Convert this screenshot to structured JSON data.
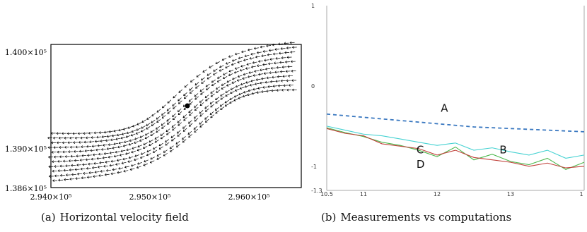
{
  "figures": [
    {
      "tag": "(a)",
      "caption": "Horizontal velocity field",
      "y_ticks": [
        "1.400×10⁵",
        "1.390×10⁵",
        "1.386×10⁵"
      ],
      "x_ticks": [
        "2.940×10⁵",
        "2.950×10⁵",
        "2.960×10⁵"
      ]
    },
    {
      "tag": "(b)",
      "caption": "Measurements vs computations",
      "y_ticks": [
        "1",
        "0",
        "-1",
        "-1.3"
      ],
      "x_ticks": [
        "10.5",
        "11",
        "12",
        "13",
        "1"
      ],
      "labels": [
        "A",
        "B",
        "C",
        "D"
      ]
    }
  ],
  "chart_data": [
    {
      "type": "scatter",
      "title": "",
      "xlabel": "",
      "ylabel": "",
      "xlim": [
        294000,
        296500
      ],
      "ylim": [
        138600,
        140100
      ],
      "grid": false,
      "description": "Quiver field of velocity arrows along a channel",
      "x": [],
      "y": []
    },
    {
      "type": "line",
      "title": "",
      "xlabel": "",
      "ylabel": "",
      "xlim": [
        10.5,
        14
      ],
      "ylim": [
        -1.3,
        1
      ],
      "grid": false,
      "x": [
        10.5,
        10.75,
        11,
        11.25,
        11.5,
        11.75,
        12,
        12.25,
        12.5,
        12.75,
        13,
        13.25,
        13.5,
        13.75,
        14
      ],
      "series": [
        {
          "name": "A",
          "color": "#3a78c0",
          "dashed": true,
          "values": [
            -0.35,
            -0.37,
            -0.39,
            -0.41,
            -0.43,
            -0.45,
            -0.47,
            -0.49,
            -0.51,
            -0.52,
            -0.53,
            -0.54,
            -0.55,
            -0.56,
            -0.57
          ]
        },
        {
          "name": "B",
          "color": "#46d2d2",
          "dashed": false,
          "values": [
            -0.5,
            -0.55,
            -0.6,
            -0.62,
            -0.66,
            -0.7,
            -0.74,
            -0.71,
            -0.8,
            -0.77,
            -0.82,
            -0.86,
            -0.8,
            -0.9,
            -0.86
          ]
        },
        {
          "name": "C",
          "color": "#4db84d",
          "dashed": false,
          "values": [
            -0.52,
            -0.58,
            -0.63,
            -0.7,
            -0.74,
            -0.8,
            -0.88,
            -0.76,
            -0.92,
            -0.85,
            -0.94,
            -0.98,
            -0.9,
            -1.04,
            -0.95
          ]
        },
        {
          "name": "D",
          "color": "#c0413a",
          "dashed": false,
          "values": [
            -0.53,
            -0.59,
            -0.62,
            -0.72,
            -0.75,
            -0.78,
            -0.86,
            -0.8,
            -0.89,
            -0.92,
            -0.95,
            -1.0,
            -0.96,
            -1.02,
            -1.0
          ]
        }
      ]
    }
  ]
}
